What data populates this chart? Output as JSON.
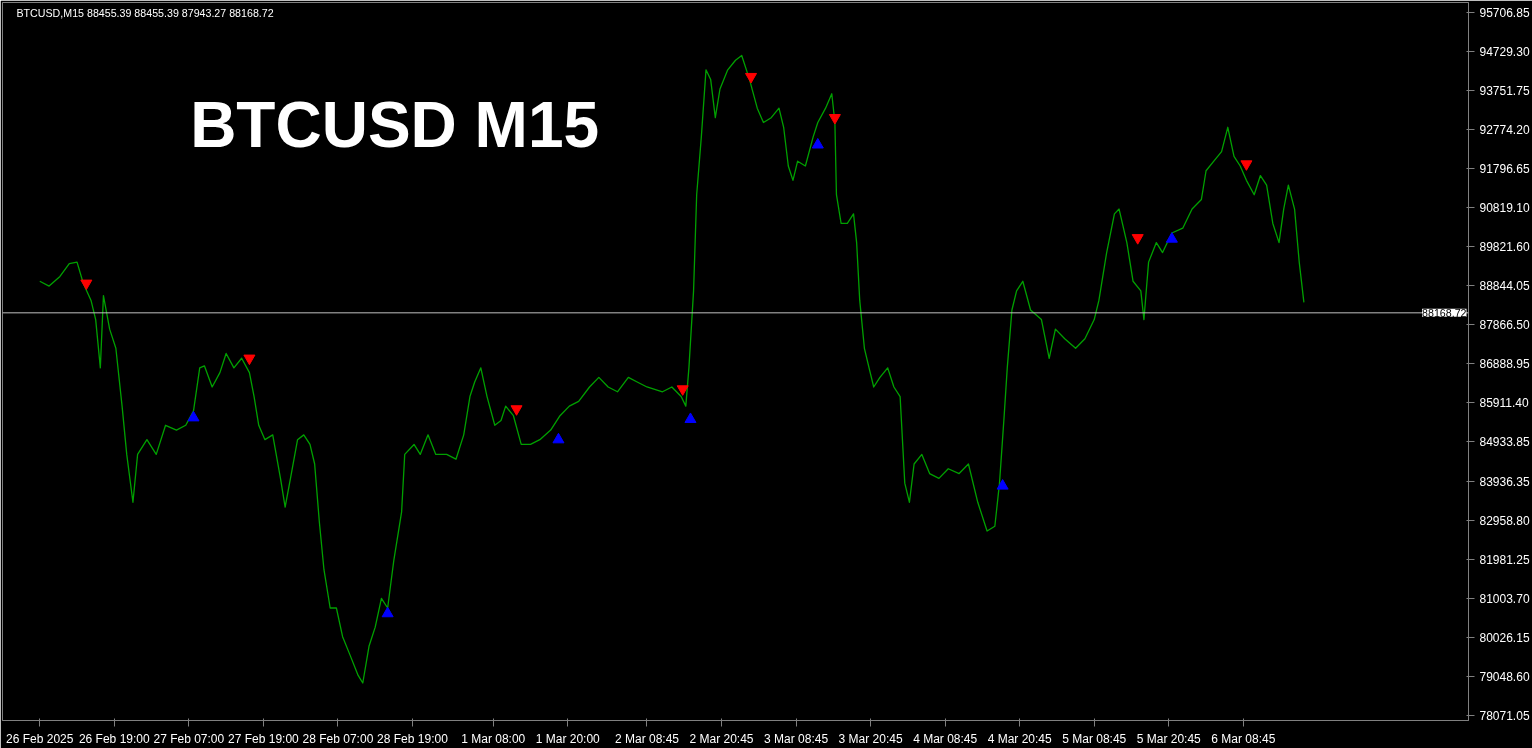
{
  "chart_data": {
    "type": "line",
    "title": "BTCUSD,M15  88455.39 88455.39 87943.27 88168.72",
    "annotations": [
      "BTCUSD M15"
    ],
    "xlim": [
      "2025-02-26T01:00",
      "2025-03-07T21:00"
    ],
    "ylim": [
      77950,
      95948
    ],
    "xticks": [
      {
        "value": "2025-02-26T07:00",
        "label": "26 Feb 2025"
      },
      {
        "value": "2025-02-26T19:00",
        "label": "26 Feb 19:00"
      },
      {
        "value": "2025-02-27T07:00",
        "label": "27 Feb 07:00"
      },
      {
        "value": "2025-02-27T19:00",
        "label": "27 Feb 19:00"
      },
      {
        "value": "2025-02-28T07:00",
        "label": "28 Feb 07:00"
      },
      {
        "value": "2025-02-28T19:00",
        "label": "28 Feb 19:00"
      },
      {
        "value": "2025-03-01T08:00",
        "label": "1 Mar 08:00"
      },
      {
        "value": "2025-03-01T20:00",
        "label": "1 Mar 20:00"
      },
      {
        "value": "2025-03-02T08:45",
        "label": "2 Mar 08:45"
      },
      {
        "value": "2025-03-02T20:45",
        "label": "2 Mar 20:45"
      },
      {
        "value": "2025-03-03T08:45",
        "label": "3 Mar 08:45"
      },
      {
        "value": "2025-03-03T20:45",
        "label": "3 Mar 20:45"
      },
      {
        "value": "2025-03-04T08:45",
        "label": "4 Mar 08:45"
      },
      {
        "value": "2025-03-04T20:45",
        "label": "4 Mar 20:45"
      },
      {
        "value": "2025-03-05T08:45",
        "label": "5 Mar 08:45"
      },
      {
        "value": "2025-03-05T20:45",
        "label": "5 Mar 20:45"
      },
      {
        "value": "2025-03-06T08:45",
        "label": "6 Mar 08:45"
      }
    ],
    "yticks": [
      {
        "value": 78071.05,
        "label": "78071.05"
      },
      {
        "value": 79048.6,
        "label": "79048.60"
      },
      {
        "value": 80026.15,
        "label": "80026.15"
      },
      {
        "value": 81003.7,
        "label": "81003.70"
      },
      {
        "value": 81981.25,
        "label": "81981.25"
      },
      {
        "value": 82958.8,
        "label": "82958.80"
      },
      {
        "value": 83936.35,
        "label": "83936.35"
      },
      {
        "value": 84933.85,
        "label": "84933.85"
      },
      {
        "value": 85911.4,
        "label": "85911.40"
      },
      {
        "value": 86888.95,
        "label": "86888.95"
      },
      {
        "value": 87866.5,
        "label": "87866.50"
      },
      {
        "value": 88844.05,
        "label": "88844.05"
      },
      {
        "value": 89821.6,
        "label": "89821.60"
      },
      {
        "value": 90819.1,
        "label": "90819.10"
      },
      {
        "value": 91796.65,
        "label": "91796.65"
      },
      {
        "value": 92774.2,
        "label": "92774.20"
      },
      {
        "value": 93751.75,
        "label": "93751.75"
      },
      {
        "value": 94729.3,
        "label": "94729.30"
      },
      {
        "value": 95706.85,
        "label": "95706.85"
      }
    ],
    "grid": false,
    "ref_lines": [
      {
        "axis": "y",
        "value": 88168.72,
        "label": "88168.72",
        "color": "#c0c0c0",
        "line_style": "solid"
      }
    ],
    "series": [
      {
        "color": "#00a000",
        "x": [
          "2025-02-26T07:00",
          "2025-02-26T08:30",
          "2025-02-26T10:15",
          "2025-02-26T11:45",
          "2025-02-26T13:00",
          "2025-02-26T14:00",
          "2025-02-26T15:15",
          "2025-02-26T16:00",
          "2025-02-26T16:45",
          "2025-02-26T17:15",
          "2025-02-26T18:15",
          "2025-02-26T19:15",
          "2025-02-26T20:15",
          "2025-02-26T21:00",
          "2025-02-26T22:00",
          "2025-02-26T22:45",
          "2025-02-27T00:15",
          "2025-02-27T01:45",
          "2025-02-27T03:15",
          "2025-02-27T05:00",
          "2025-02-27T06:30",
          "2025-02-27T07:45",
          "2025-02-27T08:45",
          "2025-02-27T09:30",
          "2025-02-27T10:45",
          "2025-02-27T12:00",
          "2025-02-27T13:00",
          "2025-02-27T14:15",
          "2025-02-27T15:30",
          "2025-02-27T16:45",
          "2025-02-27T17:30",
          "2025-02-27T18:15",
          "2025-02-27T19:15",
          "2025-02-27T20:30",
          "2025-02-27T21:45",
          "2025-02-27T22:30",
          "2025-02-27T23:30",
          "2025-02-28T00:30",
          "2025-02-28T01:30",
          "2025-02-28T02:30",
          "2025-02-28T03:15",
          "2025-02-28T04:00",
          "2025-02-28T04:45",
          "2025-02-28T05:45",
          "2025-02-28T06:45",
          "2025-02-28T07:45",
          "2025-02-28T09:00",
          "2025-02-28T10:15",
          "2025-02-28T11:00",
          "2025-02-28T12:00",
          "2025-02-28T13:00",
          "2025-02-28T14:00",
          "2025-02-28T15:00",
          "2025-02-28T16:00",
          "2025-02-28T17:15",
          "2025-02-28T17:45",
          "2025-02-28T19:15",
          "2025-02-28T20:15",
          "2025-02-28T21:30",
          "2025-02-28T22:45",
          "2025-03-01T00:30",
          "2025-03-01T02:00",
          "2025-03-01T03:15",
          "2025-03-01T04:15",
          "2025-03-01T05:00",
          "2025-03-01T06:00",
          "2025-03-01T07:00",
          "2025-03-01T08:15",
          "2025-03-01T09:15",
          "2025-03-01T10:00",
          "2025-03-01T11:15",
          "2025-03-01T12:30",
          "2025-03-01T14:00",
          "2025-03-01T15:30",
          "2025-03-01T17:15",
          "2025-03-01T18:45",
          "2025-03-01T20:15",
          "2025-03-01T21:45",
          "2025-03-01T23:30",
          "2025-03-02T01:00",
          "2025-03-02T02:30",
          "2025-03-02T04:00",
          "2025-03-02T05:45",
          "2025-03-02T07:15",
          "2025-03-02T08:45",
          "2025-03-02T11:15",
          "2025-03-02T12:45",
          "2025-03-02T14:15",
          "2025-03-02T15:00",
          "2025-03-02T15:30",
          "2025-03-02T16:15",
          "2025-03-02T16:45",
          "2025-03-02T17:30",
          "2025-03-02T18:15",
          "2025-03-02T19:00",
          "2025-03-02T19:45",
          "2025-03-02T20:30",
          "2025-03-02T21:45",
          "2025-03-02T23:00",
          "2025-03-03T00:00",
          "2025-03-03T01:15",
          "2025-03-03T02:30",
          "2025-03-03T03:30",
          "2025-03-03T04:45",
          "2025-03-03T06:00",
          "2025-03-03T06:45",
          "2025-03-03T07:30",
          "2025-03-03T08:15",
          "2025-03-03T09:00",
          "2025-03-03T10:15",
          "2025-03-03T11:30",
          "2025-03-03T12:15",
          "2025-03-03T13:30",
          "2025-03-03T14:30",
          "2025-03-03T15:00",
          "2025-03-03T15:15",
          "2025-03-03T16:00",
          "2025-03-03T17:00",
          "2025-03-03T18:00",
          "2025-03-03T18:30",
          "2025-03-03T19:00",
          "2025-03-03T19:45",
          "2025-03-03T20:30",
          "2025-03-03T21:15",
          "2025-03-03T22:15",
          "2025-03-03T23:30",
          "2025-03-04T00:30",
          "2025-03-04T01:30",
          "2025-03-04T02:15",
          "2025-03-04T03:00",
          "2025-03-04T03:45",
          "2025-03-04T05:00",
          "2025-03-04T06:15",
          "2025-03-04T07:45",
          "2025-03-04T09:15",
          "2025-03-04T11:00",
          "2025-03-04T12:30",
          "2025-03-04T14:00",
          "2025-03-04T15:30",
          "2025-03-04T16:45",
          "2025-03-04T17:30",
          "2025-03-04T18:15",
          "2025-03-04T18:45",
          "2025-03-04T19:30",
          "2025-03-04T20:15",
          "2025-03-04T21:15",
          "2025-03-04T22:30",
          "2025-03-05T00:15",
          "2025-03-05T01:30",
          "2025-03-05T02:30",
          "2025-03-05T04:00",
          "2025-03-05T05:45",
          "2025-03-05T07:15",
          "2025-03-05T08:45",
          "2025-03-05T09:30",
          "2025-03-05T10:45",
          "2025-03-05T12:00",
          "2025-03-05T12:45",
          "2025-03-05T14:00",
          "2025-03-05T15:00",
          "2025-03-05T16:15",
          "2025-03-05T16:45",
          "2025-03-05T17:30",
          "2025-03-05T18:45",
          "2025-03-05T19:45",
          "2025-03-05T21:15",
          "2025-03-05T23:00",
          "2025-03-06T00:30",
          "2025-03-06T02:00",
          "2025-03-06T02:45",
          "2025-03-06T04:00",
          "2025-03-06T05:15",
          "2025-03-06T06:15",
          "2025-03-06T07:15",
          "2025-03-06T08:15",
          "2025-03-06T09:15",
          "2025-03-06T10:30",
          "2025-03-06T11:30",
          "2025-03-06T12:30",
          "2025-03-06T13:30",
          "2025-03-06T14:30",
          "2025-03-06T15:15",
          "2025-03-06T16:00",
          "2025-03-06T17:00",
          "2025-03-06T17:45",
          "2025-03-06T18:30"
        ],
        "values": [
          88960,
          88840,
          89080,
          89400,
          89440,
          88910,
          88480,
          88000,
          86790,
          88600,
          87760,
          87280,
          85830,
          84620,
          83420,
          84620,
          84990,
          84620,
          85350,
          85230,
          85350,
          85710,
          86790,
          86840,
          86310,
          86670,
          87150,
          86790,
          87030,
          86670,
          86070,
          85350,
          84990,
          85110,
          84020,
          83300,
          84140,
          84990,
          85110,
          84870,
          84380,
          82940,
          81730,
          80770,
          80770,
          80050,
          79570,
          79080,
          78890,
          79810,
          80290,
          81010,
          80770,
          81970,
          83180,
          84620,
          84870,
          84620,
          85110,
          84620,
          84620,
          84500,
          85110,
          86070,
          86430,
          86790,
          86070,
          85350,
          85470,
          85830,
          85590,
          84870,
          84870,
          84990,
          85230,
          85590,
          85830,
          85950,
          86310,
          86550,
          86310,
          86190,
          86550,
          86430,
          86310,
          86190,
          86310,
          86070,
          85830,
          86790,
          88720,
          91130,
          92580,
          94260,
          94020,
          93060,
          93780,
          94260,
          94500,
          94620,
          94020,
          93300,
          92940,
          93060,
          93300,
          92820,
          91850,
          91490,
          91970,
          91850,
          92580,
          92940,
          93300,
          93660,
          92940,
          91130,
          90410,
          90410,
          90650,
          89930,
          88480,
          87280,
          86790,
          86310,
          86550,
          86790,
          86310,
          86070,
          83900,
          83420,
          84380,
          84620,
          84140,
          84020,
          84260,
          84140,
          84380,
          83420,
          82700,
          82820,
          83900,
          85590,
          86790,
          88240,
          88720,
          88960,
          88240,
          88000,
          87030,
          87760,
          87520,
          87280,
          87520,
          88000,
          88480,
          89680,
          90650,
          90770,
          89930,
          88960,
          88720,
          88000,
          89440,
          89930,
          89680,
          90170,
          90290,
          90770,
          91010,
          91730,
          91970,
          92210,
          92820,
          92090,
          91850,
          91490,
          91130,
          91610,
          91370,
          90410,
          89930,
          90770,
          91370,
          90770,
          89440,
          88430
        ]
      },
      {
        "type": "scatter",
        "color": "#ff0000",
        "x": [
          "2025-02-26T14:30",
          "2025-02-27T16:45",
          "2025-03-01T11:45",
          "2025-03-02T14:30",
          "2025-03-03T01:30",
          "2025-03-03T15:00",
          "2025-03-05T15:45",
          "2025-03-06T09:15"
        ],
        "values": [
          88910,
          87030,
          85760,
          86260,
          94090,
          93060,
          90050,
          91900
        ]
      },
      {
        "type": "scatter",
        "marker": "triangle",
        "color": "#0000ff",
        "x": [
          "2025-02-27T07:45",
          "2025-02-28T15:00",
          "2025-03-01T18:30",
          "2025-03-02T15:45",
          "2025-03-03T12:15",
          "2025-03-04T18:00",
          "2025-03-05T21:15"
        ],
        "values": [
          85540,
          80630,
          84990,
          85500,
          92380,
          83830,
          90020
        ]
      }
    ]
  }
}
